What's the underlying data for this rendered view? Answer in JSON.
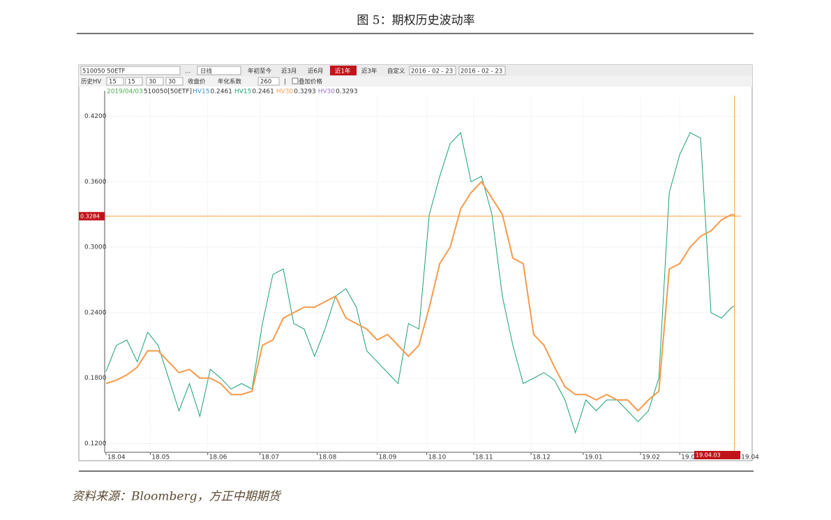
{
  "page_title": "图 5：期权历史波动率",
  "source": "资料来源：Bloomberg，方正中期期货",
  "toolbar": {
    "row1": [
      "510050  50ETF",
      "...",
      "日线",
      "年初至今",
      "近3月",
      "近6月",
      "近1年",
      "近3年",
      "自定义",
      "2016 - 02 - 23",
      "2016 - 02 - 23"
    ],
    "active": 6,
    "row2": [
      "历史HV",
      "15",
      "15",
      "30",
      "30",
      "收盘价",
      "年化系数",
      "260",
      "|",
      "叠加价格"
    ]
  },
  "chart_data": {
    "type": "line",
    "date_label": "2019/04/03",
    "symbol": "510050[50ETF]",
    "legend": [
      {
        "name": "HV15",
        "value": 0.2461,
        "color": "#3a8fd0"
      },
      {
        "name": "HV15",
        "value": 0.2461,
        "color": "#1a9e77"
      },
      {
        "name": "HV30",
        "value": 0.3293,
        "color": "#f59a4b"
      },
      {
        "name": "HV30",
        "value": 0.3293,
        "color": "#9a70c8"
      }
    ],
    "x": [
      0,
      4,
      8,
      12,
      16,
      20,
      24,
      28,
      32,
      36,
      40,
      44,
      48,
      52,
      56,
      60,
      64,
      68,
      72,
      76,
      80,
      84,
      88,
      92,
      96,
      100,
      104,
      108,
      112,
      116,
      120,
      124,
      128,
      132,
      136,
      140,
      144,
      148,
      152,
      156,
      160,
      164,
      168,
      172,
      176,
      180,
      184,
      188,
      192,
      196,
      200,
      204,
      208,
      212,
      216,
      220,
      224,
      228,
      232,
      236,
      240,
      241
    ],
    "series": [
      {
        "name": "HV15",
        "color": "#1a9e77",
        "values": [
          0.186,
          0.21,
          0.215,
          0.195,
          0.222,
          0.21,
          0.18,
          0.15,
          0.175,
          0.145,
          0.188,
          0.18,
          0.17,
          0.175,
          0.17,
          0.23,
          0.275,
          0.28,
          0.23,
          0.225,
          0.2,
          0.225,
          0.255,
          0.262,
          0.245,
          0.205,
          0.195,
          0.185,
          0.175,
          0.23,
          0.225,
          0.33,
          0.365,
          0.395,
          0.405,
          0.36,
          0.365,
          0.33,
          0.255,
          0.21,
          0.175,
          0.18,
          0.185,
          0.178,
          0.16,
          0.13,
          0.16,
          0.15,
          0.16,
          0.16,
          0.15,
          0.14,
          0.15,
          0.18,
          0.35,
          0.385,
          0.405,
          0.4,
          0.24,
          0.235,
          0.245,
          0.2461
        ]
      },
      {
        "name": "HV30",
        "color": "#f59a4b",
        "values": [
          0.175,
          0.178,
          0.183,
          0.19,
          0.205,
          0.205,
          0.195,
          0.185,
          0.188,
          0.18,
          0.18,
          0.175,
          0.165,
          0.165,
          0.168,
          0.21,
          0.215,
          0.235,
          0.24,
          0.245,
          0.245,
          0.25,
          0.255,
          0.235,
          0.23,
          0.225,
          0.215,
          0.22,
          0.21,
          0.2,
          0.21,
          0.245,
          0.285,
          0.3,
          0.335,
          0.35,
          0.36,
          0.345,
          0.33,
          0.29,
          0.285,
          0.22,
          0.21,
          0.19,
          0.172,
          0.165,
          0.165,
          0.16,
          0.165,
          0.16,
          0.16,
          0.15,
          0.16,
          0.168,
          0.28,
          0.285,
          0.3,
          0.31,
          0.315,
          0.325,
          0.33,
          0.3293
        ]
      }
    ],
    "xlim": [
      -0.5,
      243.5
    ],
    "xticks": [
      {
        "value": 0,
        "label": "18.04"
      },
      {
        "value": 17,
        "label": "18.05"
      },
      {
        "value": 39,
        "label": "18.06"
      },
      {
        "value": 59,
        "label": "18.07"
      },
      {
        "value": 81,
        "label": "18.08"
      },
      {
        "value": 104,
        "label": "18.09"
      },
      {
        "value": 123,
        "label": "18.10"
      },
      {
        "value": 141,
        "label": "18.11"
      },
      {
        "value": 163,
        "label": "18.12"
      },
      {
        "value": 183,
        "label": "19.01"
      },
      {
        "value": 205,
        "label": "19.02"
      },
      {
        "value": 220,
        "label": "19.03"
      },
      {
        "value": 243,
        "label": "19.04"
      }
    ],
    "ylim": [
      0.112,
      0.437
    ],
    "yticks": [
      {
        "value": 0.12,
        "label": "0.1200"
      },
      {
        "value": 0.18,
        "label": "0.1800"
      },
      {
        "value": 0.24,
        "label": "0.2400"
      },
      {
        "value": 0.3,
        "label": "0.3000"
      },
      {
        "value": 0.36,
        "label": "0.3600"
      },
      {
        "value": 0.42,
        "label": "0.4200"
      }
    ],
    "hline": 0.3284,
    "vline": {
      "x": 241,
      "label": "19.04.03"
    },
    "grid": true
  }
}
